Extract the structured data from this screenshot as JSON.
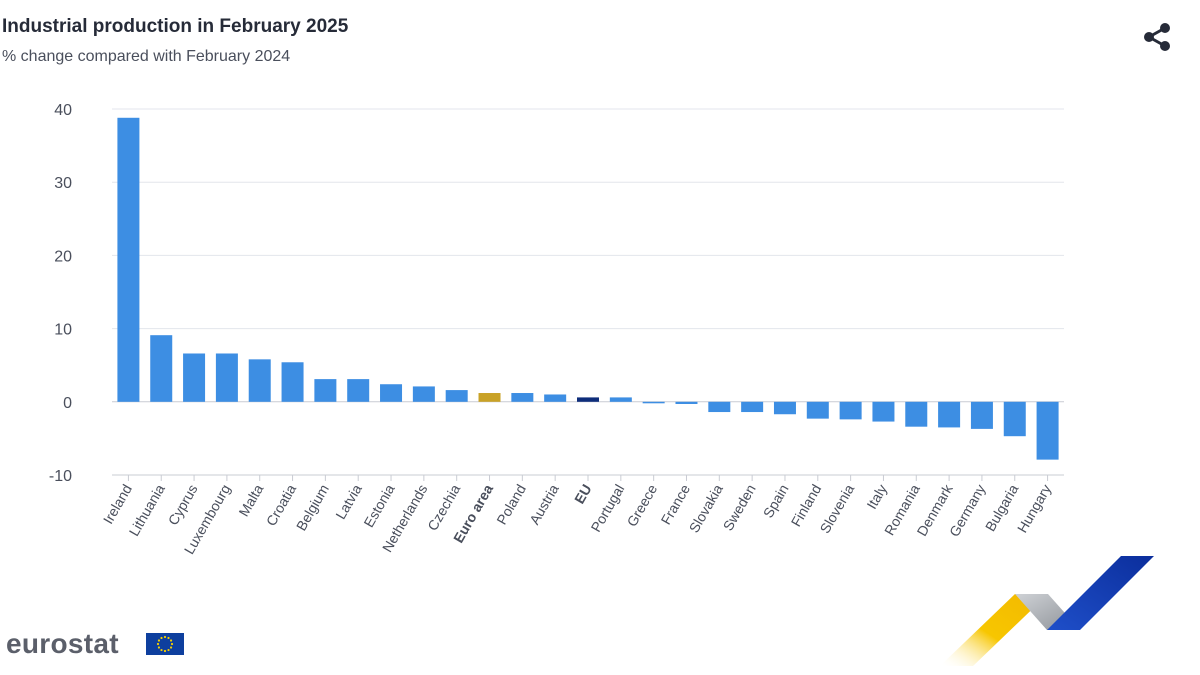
{
  "title": "Industrial production in February 2025",
  "subtitle": "% change compared with February 2024",
  "share_icon": "share-icon",
  "brand": {
    "name": "eurostat",
    "flag_icon": "eu-flag-icon",
    "ribbon_icon": "eu-ribbon-logo-icon"
  },
  "colors": {
    "default_bar": "#3d8ee3",
    "euro_area_bar": "#c9a227",
    "eu_bar": "#0e2d7a",
    "grid": "#e3e6ec",
    "tick_text": "#4a4f5c"
  },
  "chart_data": {
    "type": "bar",
    "title": "Industrial production in February 2025",
    "subtitle": "% change compared with February 2024",
    "xlabel": "",
    "ylabel": "",
    "ylim": [
      -10,
      40
    ],
    "yticks": [
      -10,
      0,
      10,
      20,
      30,
      40
    ],
    "grid": true,
    "categories": [
      "Ireland",
      "Lithuania",
      "Cyprus",
      "Luxembourg",
      "Malta",
      "Croatia",
      "Belgium",
      "Latvia",
      "Estonia",
      "Netherlands",
      "Czechia",
      "Euro area",
      "Poland",
      "Austria",
      "EU",
      "Portugal",
      "Greece",
      "France",
      "Slovakia",
      "Sweden",
      "Spain",
      "Finland",
      "Slovenia",
      "Italy",
      "Romania",
      "Denmark",
      "Germany",
      "Bulgaria",
      "Hungary"
    ],
    "values": [
      38.8,
      9.1,
      6.6,
      6.6,
      5.8,
      5.4,
      3.1,
      3.1,
      2.4,
      2.1,
      1.6,
      1.2,
      1.2,
      1.0,
      0.6,
      0.6,
      -0.1,
      -0.3,
      -1.4,
      -1.4,
      -1.7,
      -2.3,
      -2.4,
      -2.7,
      -3.4,
      -3.5,
      -3.7,
      -4.7,
      -7.9
    ],
    "highlight": {
      "Euro area": "euro_area_bar",
      "EU": "eu_bar"
    },
    "bold_labels": [
      "Euro area",
      "EU"
    ]
  }
}
